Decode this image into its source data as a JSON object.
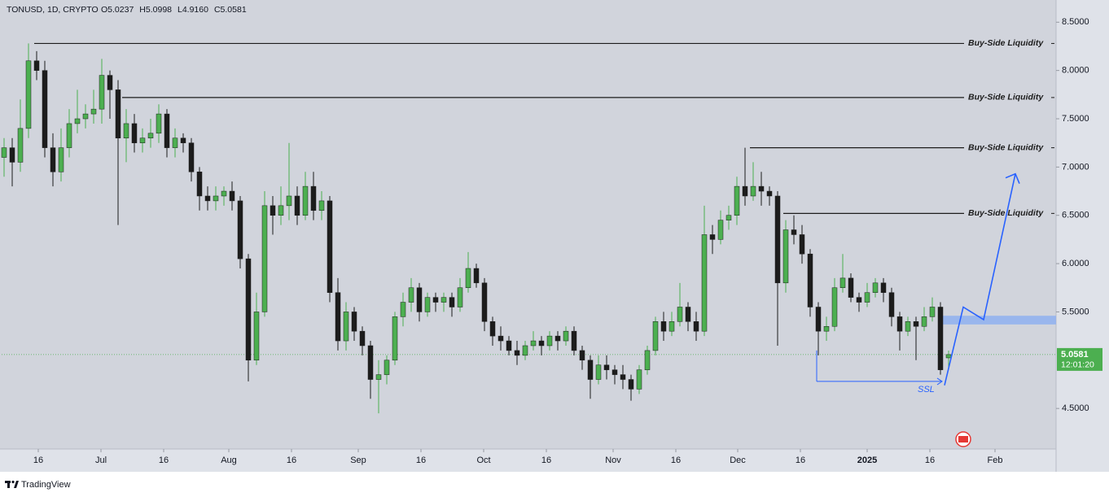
{
  "chart_data": {
    "type": "candlestick",
    "symbol": "TONUSD, 1D, CRYPTO",
    "last_bar_labels": [
      "O5.0237",
      "H5.0998",
      "L4.9160",
      "C5.0581"
    ],
    "categories": [
      null,
      null,
      null,
      null,
      null,
      null,
      null,
      null,
      null,
      null,
      null,
      null,
      null,
      null,
      null,
      null,
      null,
      null,
      null,
      null,
      null,
      null,
      null,
      null,
      null,
      null,
      null,
      null,
      null,
      null,
      null,
      null,
      null,
      null,
      null,
      null,
      null,
      null,
      null,
      null,
      null,
      null,
      null,
      null,
      null,
      null,
      null,
      null,
      null,
      null,
      null,
      null,
      null,
      null,
      null,
      null,
      null,
      null,
      null,
      null,
      null,
      null,
      null,
      null,
      null,
      null,
      null,
      null,
      null,
      null,
      null,
      null,
      null,
      null,
      null,
      null,
      null,
      null,
      null,
      null,
      null,
      null,
      null,
      null,
      null,
      null,
      null,
      null,
      null,
      null,
      null,
      null,
      null,
      null,
      null,
      null,
      null,
      null,
      null,
      null,
      null,
      null,
      null,
      null,
      null,
      null,
      null,
      null,
      null,
      null,
      null,
      null,
      null,
      null,
      null,
      null,
      null
    ],
    "ohlc": [
      [
        7.1,
        7.3,
        6.9,
        7.2
      ],
      [
        7.2,
        7.3,
        6.8,
        7.05
      ],
      [
        7.05,
        7.7,
        6.95,
        7.4
      ],
      [
        7.4,
        8.28,
        7.3,
        8.1
      ],
      [
        8.1,
        8.2,
        7.9,
        8.0
      ],
      [
        8.0,
        8.1,
        7.1,
        7.2
      ],
      [
        7.2,
        7.35,
        6.8,
        6.95
      ],
      [
        6.95,
        7.4,
        6.85,
        7.2
      ],
      [
        7.2,
        7.6,
        7.1,
        7.45
      ],
      [
        7.45,
        7.8,
        7.35,
        7.5
      ],
      [
        7.5,
        7.65,
        7.4,
        7.55
      ],
      [
        7.55,
        7.8,
        7.45,
        7.6
      ],
      [
        7.6,
        8.12,
        7.45,
        7.95
      ],
      [
        7.95,
        8.0,
        7.5,
        7.8
      ],
      [
        7.8,
        7.9,
        6.4,
        7.3
      ],
      [
        7.3,
        7.6,
        7.05,
        7.45
      ],
      [
        7.45,
        7.55,
        7.15,
        7.25
      ],
      [
        7.25,
        7.4,
        7.15,
        7.3
      ],
      [
        7.3,
        7.5,
        7.2,
        7.35
      ],
      [
        7.35,
        7.65,
        7.25,
        7.55
      ],
      [
        7.55,
        7.6,
        7.1,
        7.2
      ],
      [
        7.2,
        7.4,
        7.1,
        7.3
      ],
      [
        7.3,
        7.35,
        7.15,
        7.25
      ],
      [
        7.25,
        7.3,
        6.85,
        6.95
      ],
      [
        6.95,
        7.0,
        6.55,
        6.7
      ],
      [
        6.7,
        6.8,
        6.55,
        6.65
      ],
      [
        6.65,
        6.8,
        6.55,
        6.7
      ],
      [
        6.7,
        6.8,
        6.6,
        6.75
      ],
      [
        6.75,
        6.85,
        6.55,
        6.65
      ],
      [
        6.65,
        6.7,
        5.95,
        6.05
      ],
      [
        6.05,
        6.1,
        4.78,
        5.0
      ],
      [
        5.0,
        5.7,
        4.95,
        5.5
      ],
      [
        5.5,
        6.75,
        5.45,
        6.6
      ],
      [
        6.6,
        6.7,
        6.3,
        6.5
      ],
      [
        6.5,
        6.8,
        6.4,
        6.6
      ],
      [
        6.6,
        7.25,
        6.45,
        6.7
      ],
      [
        6.7,
        6.8,
        6.4,
        6.5
      ],
      [
        6.5,
        6.95,
        6.45,
        6.8
      ],
      [
        6.8,
        6.95,
        6.45,
        6.55
      ],
      [
        6.55,
        6.75,
        6.45,
        6.65
      ],
      [
        6.65,
        6.7,
        5.6,
        5.7
      ],
      [
        5.7,
        5.85,
        5.1,
        5.2
      ],
      [
        5.2,
        5.6,
        5.1,
        5.5
      ],
      [
        5.5,
        5.55,
        5.2,
        5.3
      ],
      [
        5.3,
        5.35,
        5.05,
        5.15
      ],
      [
        5.15,
        5.2,
        4.6,
        4.8
      ],
      [
        4.8,
        5.0,
        4.45,
        4.85
      ],
      [
        4.85,
        5.05,
        4.75,
        5.0
      ],
      [
        5.0,
        5.5,
        4.95,
        5.45
      ],
      [
        5.45,
        5.7,
        5.35,
        5.6
      ],
      [
        5.6,
        5.85,
        5.5,
        5.75
      ],
      [
        5.75,
        5.8,
        5.4,
        5.5
      ],
      [
        5.5,
        5.7,
        5.45,
        5.65
      ],
      [
        5.65,
        5.7,
        5.5,
        5.6
      ],
      [
        5.6,
        5.7,
        5.5,
        5.65
      ],
      [
        5.65,
        5.7,
        5.45,
        5.55
      ],
      [
        5.55,
        5.85,
        5.5,
        5.75
      ],
      [
        5.75,
        6.12,
        5.7,
        5.95
      ],
      [
        5.95,
        6.0,
        5.75,
        5.8
      ],
      [
        5.8,
        5.85,
        5.3,
        5.4
      ],
      [
        5.4,
        5.45,
        5.15,
        5.25
      ],
      [
        5.25,
        5.35,
        5.1,
        5.2
      ],
      [
        5.2,
        5.25,
        5.05,
        5.1
      ],
      [
        5.1,
        5.2,
        4.95,
        5.05
      ],
      [
        5.05,
        5.2,
        5.0,
        5.15
      ],
      [
        5.15,
        5.3,
        5.1,
        5.2
      ],
      [
        5.2,
        5.25,
        5.05,
        5.15
      ],
      [
        5.15,
        5.3,
        5.1,
        5.25
      ],
      [
        5.25,
        5.3,
        5.1,
        5.2
      ],
      [
        5.2,
        5.35,
        5.15,
        5.3
      ],
      [
        5.3,
        5.35,
        5.05,
        5.1
      ],
      [
        5.1,
        5.15,
        4.9,
        5.0
      ],
      [
        5.0,
        5.05,
        4.6,
        4.8
      ],
      [
        4.8,
        5.05,
        4.75,
        4.95
      ],
      [
        4.95,
        5.05,
        4.8,
        4.9
      ],
      [
        4.9,
        4.95,
        4.75,
        4.85
      ],
      [
        4.85,
        4.95,
        4.7,
        4.8
      ],
      [
        4.8,
        4.85,
        4.58,
        4.7
      ],
      [
        4.7,
        4.95,
        4.65,
        4.9
      ],
      [
        4.9,
        5.15,
        4.85,
        5.1
      ],
      [
        5.1,
        5.45,
        5.05,
        5.4
      ],
      [
        5.4,
        5.5,
        5.2,
        5.3
      ],
      [
        5.3,
        5.5,
        5.25,
        5.4
      ],
      [
        5.4,
        5.8,
        5.35,
        5.55
      ],
      [
        5.55,
        5.6,
        5.3,
        5.4
      ],
      [
        5.4,
        5.5,
        5.2,
        5.3
      ],
      [
        5.3,
        6.6,
        5.25,
        6.3
      ],
      [
        6.3,
        6.4,
        6.1,
        6.25
      ],
      [
        6.25,
        6.55,
        6.2,
        6.45
      ],
      [
        6.45,
        6.6,
        6.35,
        6.5
      ],
      [
        6.5,
        6.9,
        6.4,
        6.8
      ],
      [
        6.8,
        7.2,
        6.6,
        6.7
      ],
      [
        6.7,
        7.05,
        6.65,
        6.8
      ],
      [
        6.8,
        6.95,
        6.6,
        6.75
      ],
      [
        6.75,
        6.8,
        6.6,
        6.7
      ],
      [
        6.7,
        6.75,
        5.15,
        5.8
      ],
      [
        5.8,
        6.45,
        5.7,
        6.35
      ],
      [
        6.35,
        6.5,
        6.2,
        6.3
      ],
      [
        6.3,
        6.4,
        6.0,
        6.1
      ],
      [
        6.1,
        6.15,
        5.45,
        5.55
      ],
      [
        5.55,
        5.6,
        5.05,
        5.3
      ],
      [
        5.3,
        5.45,
        5.2,
        5.35
      ],
      [
        5.35,
        5.85,
        5.3,
        5.75
      ],
      [
        5.75,
        6.1,
        5.7,
        5.85
      ],
      [
        5.85,
        5.9,
        5.6,
        5.65
      ],
      [
        5.65,
        5.7,
        5.5,
        5.6
      ],
      [
        5.6,
        5.8,
        5.55,
        5.7
      ],
      [
        5.7,
        5.85,
        5.65,
        5.8
      ],
      [
        5.8,
        5.85,
        5.6,
        5.7
      ],
      [
        5.7,
        5.75,
        5.35,
        5.45
      ],
      [
        5.45,
        5.5,
        5.1,
        5.3
      ],
      [
        5.3,
        5.45,
        5.25,
        5.4
      ],
      [
        5.4,
        5.45,
        5.0,
        5.35
      ],
      [
        5.35,
        5.55,
        5.3,
        5.45
      ],
      [
        5.45,
        5.65,
        5.4,
        5.55
      ],
      [
        5.55,
        5.6,
        4.85,
        4.9
      ],
      [
        5.0237,
        5.0998,
        4.916,
        5.0581
      ]
    ],
    "colors": {
      "up": "#4caf50",
      "down": "#1c1c1c",
      "level": "#1c1c1c",
      "annotation": "#2962ff"
    },
    "xlim": [
      -0.3,
      129.2
    ],
    "xticks": [
      {
        "value": 4.2,
        "label": "16"
      },
      {
        "value": 11.9,
        "label": "Jul"
      },
      {
        "value": 19.6,
        "label": "16"
      },
      {
        "value": 27.6,
        "label": "Aug"
      },
      {
        "value": 35.3,
        "label": "16"
      },
      {
        "value": 43.5,
        "label": "Sep"
      },
      {
        "value": 51.2,
        "label": "16"
      },
      {
        "value": 58.9,
        "label": "Oct"
      },
      {
        "value": 66.6,
        "label": "16"
      },
      {
        "value": 74.8,
        "label": "Nov"
      },
      {
        "value": 82.5,
        "label": "16"
      },
      {
        "value": 90.1,
        "label": "Dec"
      },
      {
        "value": 97.8,
        "label": "16"
      },
      {
        "value": 106,
        "label": "2025"
      },
      {
        "value": 113.7,
        "label": "16"
      },
      {
        "value": 121.7,
        "label": "Feb"
      }
    ],
    "ylim": [
      4.08,
      8.73
    ],
    "yticks": [
      {
        "value": 8.5,
        "label": "8.5000"
      },
      {
        "value": 8.0,
        "label": "8.0000"
      },
      {
        "value": 7.5,
        "label": "7.5000"
      },
      {
        "value": 7.0,
        "label": "7.0000"
      },
      {
        "value": 6.5,
        "label": "6.5000"
      },
      {
        "value": 6.0,
        "label": "6.0000"
      },
      {
        "value": 5.5,
        "label": "5.5000"
      },
      {
        "value": 4.5,
        "label": "4.5000"
      }
    ],
    "levels": [
      {
        "label": "Buy-Side Liquidity",
        "value": 8.28,
        "start": 3.7
      },
      {
        "label": "Buy-Side Liquidity",
        "value": 7.72,
        "start": 14.5
      },
      {
        "label": "Buy-Side Liquidity",
        "value": 7.2,
        "start": 91.6
      },
      {
        "label": "Buy-Side Liquidity",
        "value": 6.52,
        "start": 95.7
      }
    ],
    "ssl": {
      "label": "SSL",
      "value": 4.78,
      "x": [
        99.8,
        115.2
      ]
    },
    "zone": {
      "y": [
        5.37,
        5.46
      ],
      "start": 115.2
    },
    "projection": {
      "x": [
        115.5,
        117.8,
        120.3,
        124.2
      ],
      "y": [
        4.74,
        5.55,
        5.42,
        6.93
      ]
    },
    "countdown": "12:01:20"
  },
  "footer": "TradingView"
}
